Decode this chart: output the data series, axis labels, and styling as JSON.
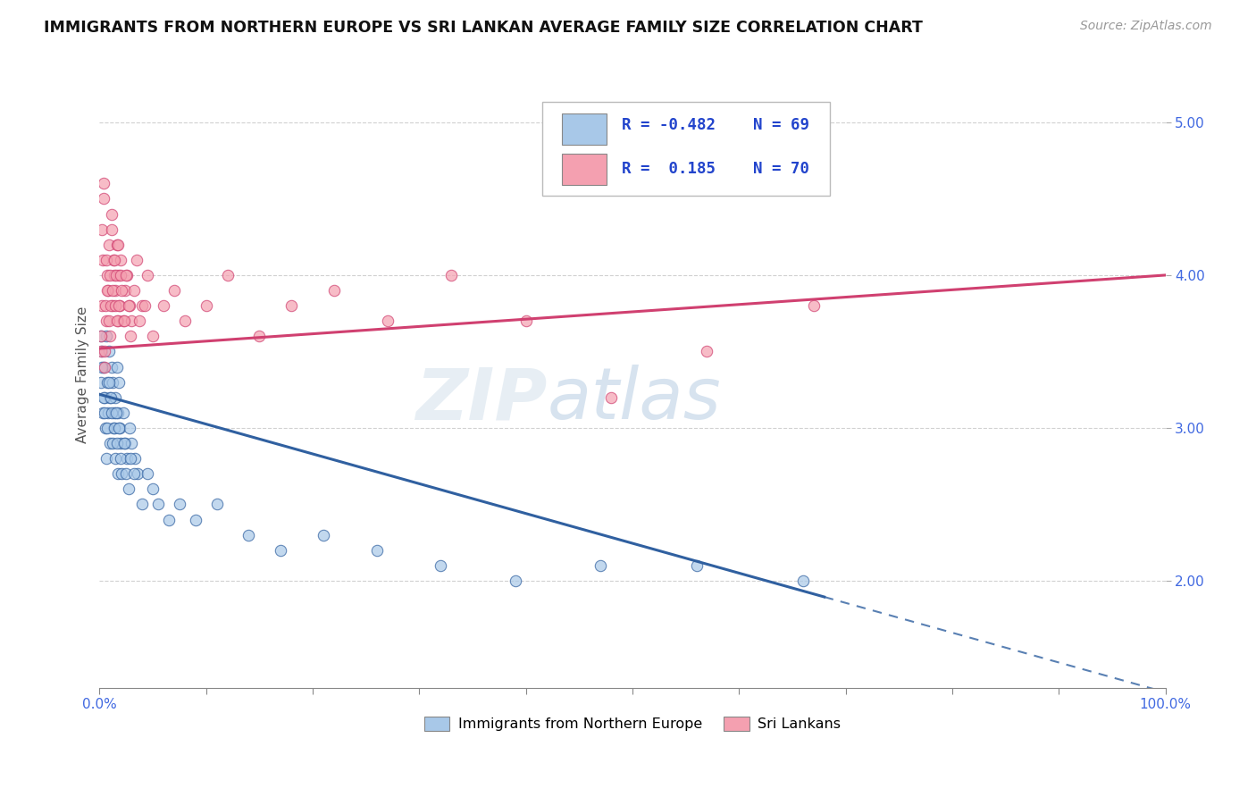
{
  "title": "IMMIGRANTS FROM NORTHERN EUROPE VS SRI LANKAN AVERAGE FAMILY SIZE CORRELATION CHART",
  "source": "Source: ZipAtlas.com",
  "ylabel": "Average Family Size",
  "xlim": [
    0,
    100
  ],
  "ylim": [
    1.3,
    5.4
  ],
  "yticks": [
    2.0,
    3.0,
    4.0,
    5.0
  ],
  "blue_color": "#a8c8e8",
  "pink_color": "#f4a0b0",
  "blue_line_color": "#3060a0",
  "pink_line_color": "#d04070",
  "legend1_label": "Immigrants from Northern Europe",
  "legend2_label": "Sri Lankans",
  "watermark_zip": "ZIP",
  "watermark_atlas": "atlas",
  "blue_R_text": "R = -0.482",
  "blue_N_text": "N = 69",
  "pink_R_text": "R =  0.185",
  "pink_N_text": "N = 70",
  "blue_scatter_x": [
    0.1,
    0.2,
    0.3,
    0.4,
    0.5,
    0.6,
    0.7,
    0.8,
    0.9,
    1.0,
    1.1,
    1.2,
    1.3,
    1.4,
    1.5,
    1.6,
    1.7,
    1.8,
    1.9,
    2.0,
    2.2,
    2.4,
    2.6,
    2.8,
    3.0,
    3.3,
    3.6,
    4.0,
    4.5,
    5.0,
    5.5,
    6.5,
    7.5,
    9.0,
    11.0,
    14.0,
    17.0,
    21.0,
    26.0,
    32.0,
    39.0,
    47.0,
    56.0,
    66.0,
    0.15,
    0.25,
    0.35,
    0.45,
    0.55,
    0.65,
    0.75,
    0.85,
    0.95,
    1.05,
    1.15,
    1.25,
    1.35,
    1.45,
    1.55,
    1.65,
    1.75,
    1.85,
    1.95,
    2.1,
    2.3,
    2.5,
    2.7,
    2.9,
    3.2
  ],
  "blue_scatter_y": [
    3.3,
    3.5,
    3.1,
    3.4,
    3.2,
    3.6,
    3.3,
    3.1,
    3.5,
    3.2,
    3.4,
    3.3,
    3.0,
    3.1,
    3.2,
    3.4,
    3.1,
    3.3,
    3.0,
    2.9,
    3.1,
    2.9,
    2.8,
    3.0,
    2.9,
    2.8,
    2.7,
    2.5,
    2.7,
    2.6,
    2.5,
    2.4,
    2.5,
    2.4,
    2.5,
    2.3,
    2.2,
    2.3,
    2.2,
    2.1,
    2.0,
    2.1,
    2.1,
    2.0,
    3.6,
    3.4,
    3.2,
    3.1,
    3.0,
    2.8,
    3.0,
    3.3,
    2.9,
    3.2,
    3.1,
    2.9,
    3.0,
    2.8,
    3.1,
    2.9,
    2.7,
    3.0,
    2.8,
    2.7,
    2.9,
    2.7,
    2.6,
    2.8,
    2.7
  ],
  "pink_scatter_x": [
    0.1,
    0.2,
    0.3,
    0.4,
    0.5,
    0.6,
    0.7,
    0.8,
    0.9,
    1.0,
    1.1,
    1.2,
    1.3,
    1.4,
    1.5,
    1.6,
    1.7,
    1.8,
    1.9,
    2.0,
    2.2,
    2.4,
    2.6,
    2.8,
    3.0,
    3.5,
    4.0,
    4.5,
    5.0,
    6.0,
    7.0,
    8.0,
    10.0,
    12.0,
    15.0,
    18.0,
    22.0,
    27.0,
    33.0,
    40.0,
    48.0,
    57.0,
    67.0,
    0.15,
    0.25,
    0.35,
    0.45,
    0.55,
    0.65,
    0.75,
    0.85,
    0.95,
    1.05,
    1.15,
    1.25,
    1.35,
    1.45,
    1.55,
    1.65,
    1.75,
    1.85,
    1.95,
    2.1,
    2.3,
    2.5,
    2.7,
    2.9,
    3.2,
    3.7,
    4.2
  ],
  "pink_scatter_y": [
    3.5,
    3.8,
    4.1,
    4.5,
    3.4,
    3.7,
    4.0,
    3.9,
    4.2,
    3.6,
    4.4,
    3.8,
    4.1,
    4.0,
    3.9,
    4.2,
    3.7,
    4.0,
    3.8,
    4.1,
    3.7,
    3.9,
    4.0,
    3.8,
    3.7,
    4.1,
    3.8,
    4.0,
    3.6,
    3.8,
    3.9,
    3.7,
    3.8,
    4.0,
    3.6,
    3.8,
    3.9,
    3.7,
    4.0,
    3.7,
    3.2,
    3.5,
    3.8,
    3.6,
    4.3,
    4.6,
    3.5,
    3.8,
    4.1,
    3.9,
    3.7,
    4.0,
    3.8,
    4.3,
    3.9,
    4.1,
    3.8,
    4.0,
    3.7,
    4.2,
    3.8,
    4.0,
    3.9,
    3.7,
    4.0,
    3.8,
    3.6,
    3.9,
    3.7,
    3.8
  ],
  "blue_line_x0": 0,
  "blue_line_y0": 3.22,
  "blue_line_x_solid_end": 68,
  "blue_line_x_dash_end": 100,
  "blue_line_slope": -0.0195,
  "pink_line_x0": 0,
  "pink_line_y0": 3.52,
  "pink_line_slope": 0.0048
}
